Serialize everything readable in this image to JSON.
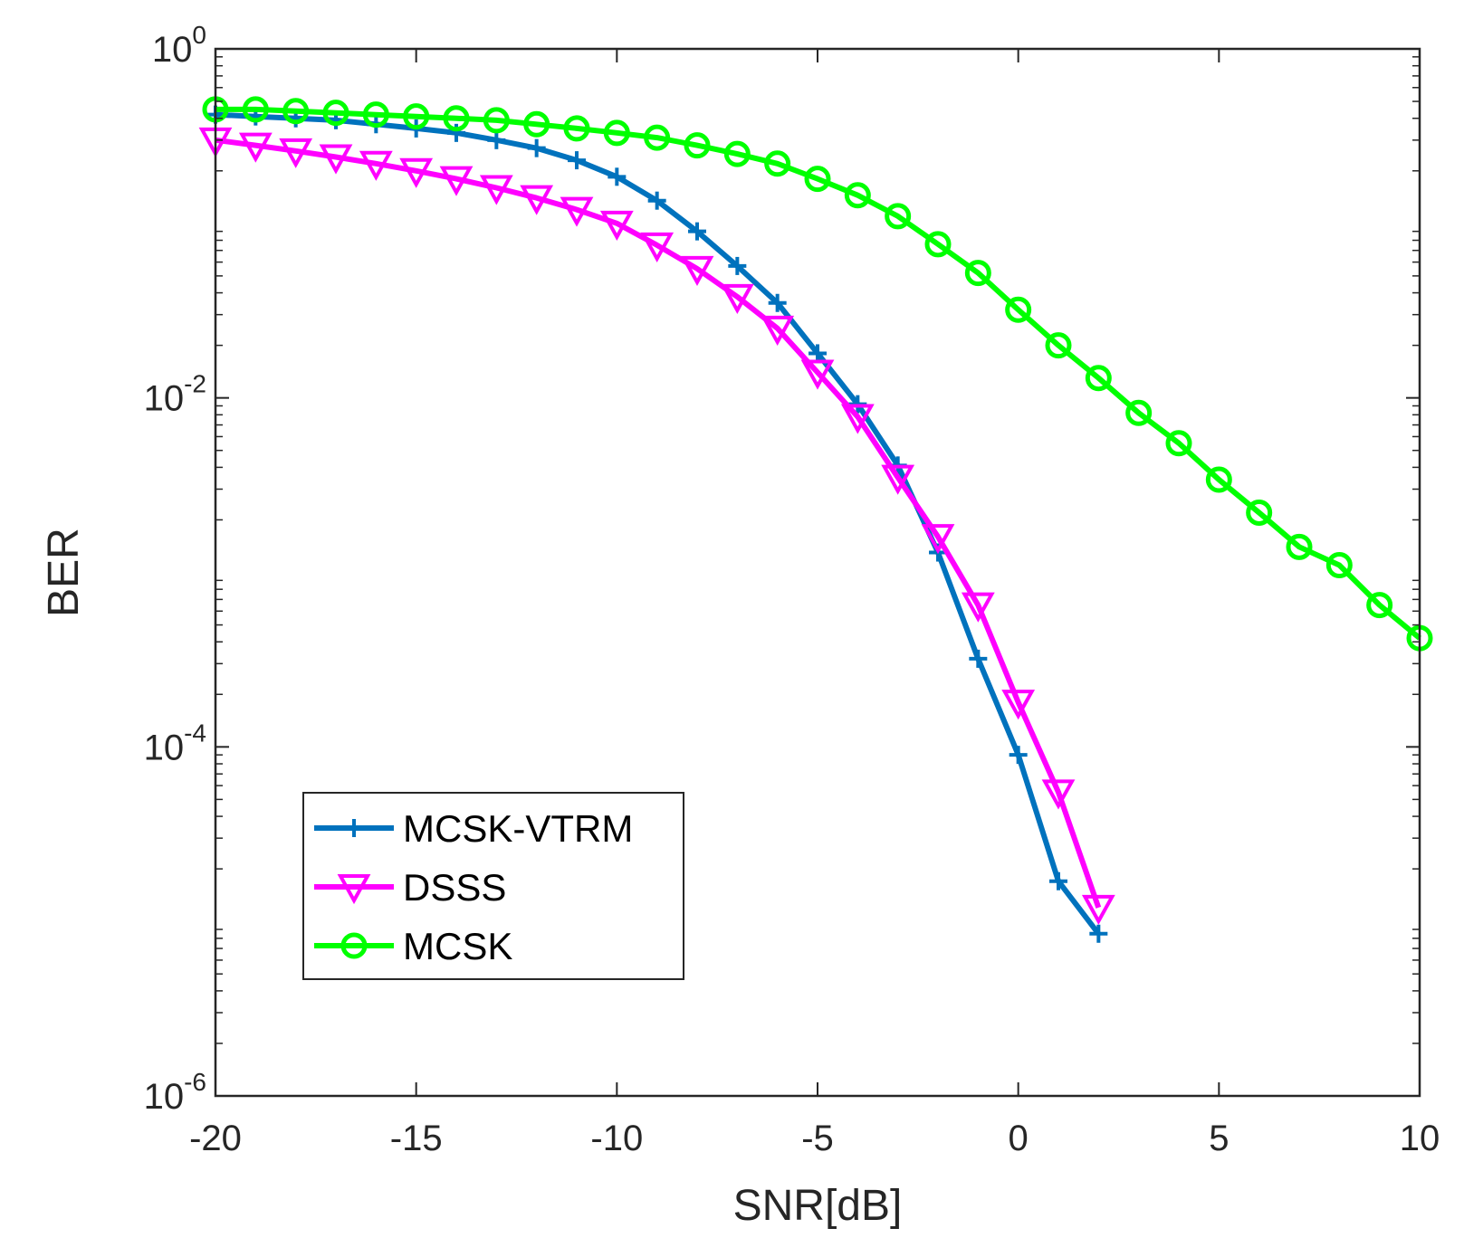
{
  "chart_data": {
    "type": "line",
    "title": "",
    "xlabel": "SNR[dB]",
    "ylabel": "BER",
    "xscale": "linear",
    "yscale": "log",
    "xlim": [
      -20,
      10
    ],
    "ylim": [
      1e-06,
      1
    ],
    "grid": false,
    "legend_position": "bottom-left",
    "x_ticks": [
      {
        "value": -20,
        "label": "-20"
      },
      {
        "value": -15,
        "label": "-15"
      },
      {
        "value": -10,
        "label": "-10"
      },
      {
        "value": -5,
        "label": "-5"
      },
      {
        "value": 0,
        "label": "0"
      },
      {
        "value": 5,
        "label": "5"
      },
      {
        "value": 10,
        "label": "10"
      }
    ],
    "y_ticks": [
      {
        "value": 1,
        "base": "10",
        "exp": "0"
      },
      {
        "value": 0.01,
        "base": "10",
        "exp": "-2"
      },
      {
        "value": 0.0001,
        "base": "10",
        "exp": "-4"
      },
      {
        "value": 1e-06,
        "base": "10",
        "exp": "-6"
      }
    ],
    "series": [
      {
        "name": "MCSK-VTRM",
        "color": "#0072BD",
        "marker": "plus",
        "x": [
          -20,
          -19,
          -18,
          -17,
          -16,
          -15,
          -14,
          -13,
          -12,
          -11,
          -10,
          -9,
          -8,
          -7,
          -6,
          -5,
          -4,
          -3,
          -2,
          -1,
          0,
          1,
          2
        ],
        "y": [
          0.42,
          0.41,
          0.4,
          0.39,
          0.37,
          0.35,
          0.33,
          0.3,
          0.27,
          0.23,
          0.185,
          0.135,
          0.09,
          0.057,
          0.035,
          0.018,
          0.0092,
          0.0041,
          0.0013,
          0.00032,
          9e-05,
          1.7e-05,
          8.5e-06
        ]
      },
      {
        "name": "DSSS",
        "color": "#FF00FF",
        "marker": "triangle-down",
        "x": [
          -20,
          -19,
          -18,
          -17,
          -16,
          -15,
          -14,
          -13,
          -12,
          -11,
          -10,
          -9,
          -8,
          -7,
          -6,
          -5,
          -4,
          -3,
          -2,
          -1,
          0,
          1,
          2
        ],
        "y": [
          0.3,
          0.28,
          0.26,
          0.24,
          0.22,
          0.2,
          0.18,
          0.16,
          0.14,
          0.12,
          0.1,
          0.075,
          0.055,
          0.038,
          0.025,
          0.014,
          0.0078,
          0.0035,
          0.0016,
          0.00065,
          0.00018,
          5.5e-05,
          1.2e-05
        ]
      },
      {
        "name": "MCSK",
        "color": "#00FF00",
        "marker": "circle",
        "x": [
          -20,
          -19,
          -18,
          -17,
          -16,
          -15,
          -14,
          -13,
          -12,
          -11,
          -10,
          -9,
          -8,
          -7,
          -6,
          -5,
          -4,
          -3,
          -2,
          -1,
          0,
          1,
          2,
          3,
          4,
          5,
          6,
          7,
          8,
          9,
          10
        ],
        "y": [
          0.45,
          0.45,
          0.44,
          0.43,
          0.42,
          0.41,
          0.4,
          0.39,
          0.37,
          0.35,
          0.33,
          0.31,
          0.28,
          0.25,
          0.22,
          0.18,
          0.145,
          0.11,
          0.076,
          0.052,
          0.032,
          0.02,
          0.013,
          0.0082,
          0.0055,
          0.0034,
          0.0022,
          0.0014,
          0.0011,
          0.00065,
          0.00042
        ]
      }
    ]
  }
}
